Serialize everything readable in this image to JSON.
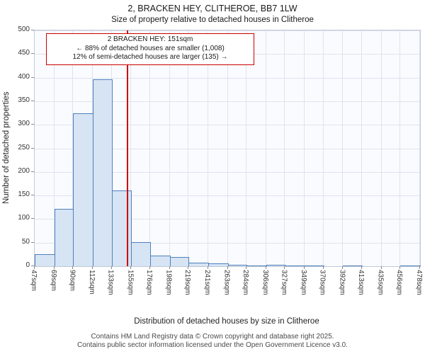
{
  "title": "2, BRACKEN HEY, CLITHEROE, BB7 1LW",
  "subtitle": "Size of property relative to detached houses in Clitheroe",
  "annotation": {
    "line1": "2 BRACKEN HEY: 151sqm",
    "line2": "← 88% of detached houses are smaller (1,008)",
    "line3": "12% of semi-detached houses are larger (135) →"
  },
  "footer": {
    "line1": "Contains HM Land Registry data © Crown copyright and database right 2025.",
    "line2": "Contains public sector information licensed under the Open Government Licence v3.0."
  },
  "chart_data": {
    "type": "bar",
    "title": "2, BRACKEN HEY, CLITHEROE, BB7 1LW — Size of property relative to detached houses in Clitheroe",
    "xlabel": "Distribution of detached houses by size in Clitheroe",
    "ylabel": "Number of detached properties",
    "ylim": [
      0,
      500
    ],
    "ytick_step": 50,
    "grid": true,
    "bin_edges_sqm": [
      47,
      69,
      90,
      112,
      133,
      155,
      176,
      198,
      219,
      241,
      263,
      284,
      306,
      327,
      349,
      370,
      392,
      413,
      435,
      456,
      478
    ],
    "tick_labels": [
      "47sqm",
      "69sqm",
      "90sqm",
      "112sqm",
      "133sqm",
      "155sqm",
      "176sqm",
      "198sqm",
      "219sqm",
      "241sqm",
      "263sqm",
      "284sqm",
      "306sqm",
      "327sqm",
      "349sqm",
      "370sqm",
      "392sqm",
      "413sqm",
      "435sqm",
      "456sqm",
      "478sqm"
    ],
    "values": [
      25,
      122,
      325,
      397,
      160,
      51,
      23,
      20,
      7,
      6,
      3,
      2,
      3,
      1,
      1,
      0,
      1,
      0,
      0,
      1
    ],
    "marker_value_sqm": 151,
    "colors": {
      "bar_fill": "#d6e4f4",
      "bar_border": "#4f81bd",
      "marker_line": "#cc0000",
      "annotation_border": "#cc0000",
      "grid_line": "#dde3f1"
    }
  }
}
